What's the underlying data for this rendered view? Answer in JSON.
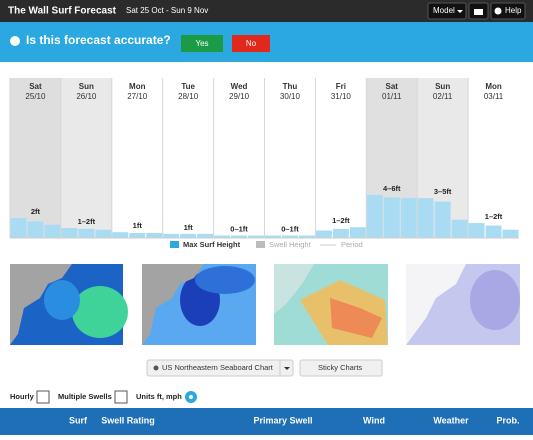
{
  "header": {
    "title": "The Wall Surf Forecast",
    "dates": "Sat 25 Oct - Sun 9 Nov",
    "model": "Model",
    "help": "Help"
  },
  "banner": {
    "question": "Is this forecast accurate?",
    "yes": "Yes",
    "no": "No"
  },
  "forecast": {
    "bar_color": "#a9dcf3",
    "days": [
      {
        "day": "Sat",
        "date": "25/10",
        "label": "2ft",
        "shade": "#dedede",
        "bars": [
          2.4,
          2.0,
          1.6
        ]
      },
      {
        "day": "Sun",
        "date": "26/10",
        "label": "1–2ft",
        "shade": "#e9e9e9",
        "bars": [
          1.2,
          1.1,
          1.0
        ]
      },
      {
        "day": "Mon",
        "date": "27/10",
        "label": "1ft",
        "shade": "#ffffff",
        "bars": [
          0.7,
          0.6,
          0.6
        ]
      },
      {
        "day": "Tue",
        "date": "28/10",
        "label": "1ft",
        "shade": "#ffffff",
        "bars": [
          0.5,
          0.5,
          0.5
        ]
      },
      {
        "day": "Wed",
        "date": "29/10",
        "label": "0–1ft",
        "shade": "#ffffff",
        "bars": [
          0.3,
          0.3,
          0.3
        ]
      },
      {
        "day": "Thu",
        "date": "30/10",
        "label": "0–1ft",
        "shade": "#ffffff",
        "bars": [
          0.3,
          0.3,
          0.3
        ]
      },
      {
        "day": "Fri",
        "date": "31/10",
        "label": "1–2ft",
        "shade": "#ffffff",
        "bars": [
          0.9,
          1.1,
          1.3
        ]
      },
      {
        "day": "Sat",
        "date": "01/11",
        "label": "4–6ft",
        "shade": "#e0e0e0",
        "bars": [
          5.2,
          4.9,
          4.8
        ]
      },
      {
        "day": "Sun",
        "date": "02/11",
        "label": "3–5ft",
        "shade": "#e9e9e9",
        "bars": [
          4.8,
          4.4,
          2.2
        ]
      },
      {
        "day": "Mon",
        "date": "03/11",
        "label": "1–2ft",
        "shade": "#ffffff",
        "bars": [
          1.8,
          1.5,
          1.0
        ]
      }
    ]
  },
  "legend": [
    "Max Surf Height",
    "Swell Height",
    "Period"
  ],
  "chart_controls": {
    "chart": "US Northeastern Seaboard Chart",
    "sticky": "Sticky Charts"
  },
  "options": {
    "hourly": "Hourly",
    "multiple_swells": "Multiple Swells",
    "units": "Units ft, mph"
  },
  "table": {
    "columns": [
      "Surf",
      "Swell Rating",
      "Primary Swell",
      "Wind",
      "Weather",
      "Prob."
    ]
  }
}
